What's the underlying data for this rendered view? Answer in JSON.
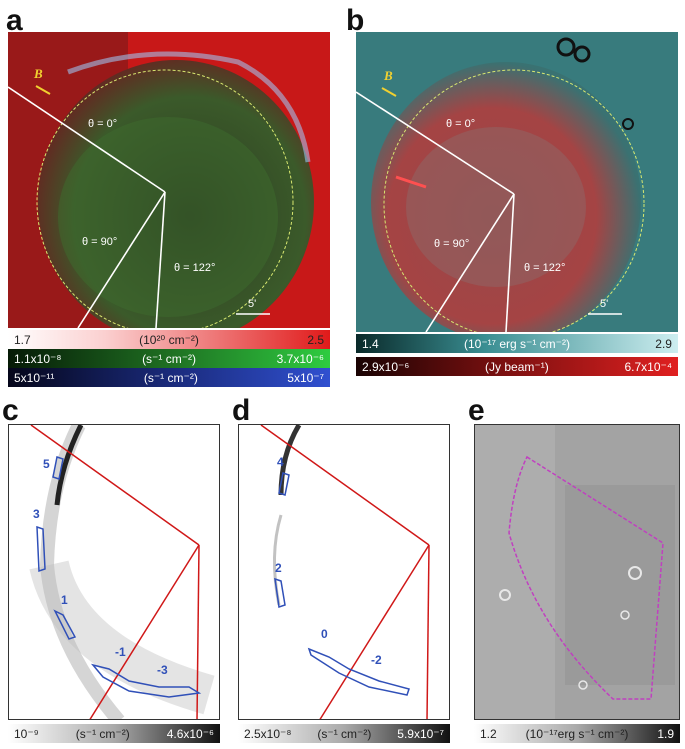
{
  "panels": {
    "a": {
      "label": "a",
      "angles": [
        "θ = 0°",
        "θ = 90°",
        "θ = 122°"
      ],
      "scale": "5'",
      "field": "B"
    },
    "b": {
      "label": "b",
      "angles": [
        "θ = 0°",
        "θ = 90°",
        "θ = 122°"
      ],
      "scale": "5'",
      "field": "B"
    },
    "c": {
      "label": "c",
      "regions": [
        "5",
        "3",
        "1",
        "-1",
        "-3"
      ]
    },
    "d": {
      "label": "d",
      "regions": [
        "4",
        "2",
        "0",
        "-2"
      ]
    },
    "e": {
      "label": "e"
    }
  },
  "colorbars": {
    "a_red": {
      "min": "1.7",
      "unit": "(10²⁰ cm⁻²)",
      "max": "2.5",
      "color": "#e01a1a"
    },
    "a_green": {
      "min": "1.1x10⁻⁸",
      "unit": "(s⁻¹ cm⁻²)",
      "max": "3.7x10⁻⁶",
      "color": "#2ecc40"
    },
    "a_blue": {
      "min": "5x10⁻¹¹",
      "unit": "(s⁻¹ cm⁻²)",
      "max": "5x10⁻⁷",
      "color": "#3050d0"
    },
    "b_cyan": {
      "min": "1.4",
      "unit": "(10⁻¹⁷ erg s⁻¹ cm⁻²)",
      "max": "2.9",
      "color": "#7fd4d8"
    },
    "b_red": {
      "min": "2.9x10⁻⁶",
      "unit": "(Jy beam⁻¹)",
      "max": "6.7x10⁻⁴",
      "color": "#e01a1a"
    },
    "c_gray": {
      "min": "10⁻⁹",
      "unit": "(s⁻¹ cm⁻²)",
      "max": "4.6x10⁻⁶"
    },
    "d_gray": {
      "min": "2.5x10⁻⁸",
      "unit": "(s⁻¹ cm⁻²)",
      "max": "5.9x10⁻⁷"
    },
    "e_gray": {
      "min": "1.2",
      "unit": "(10⁻¹⁷erg s⁻¹ cm⁻²)",
      "max": "1.9"
    }
  }
}
